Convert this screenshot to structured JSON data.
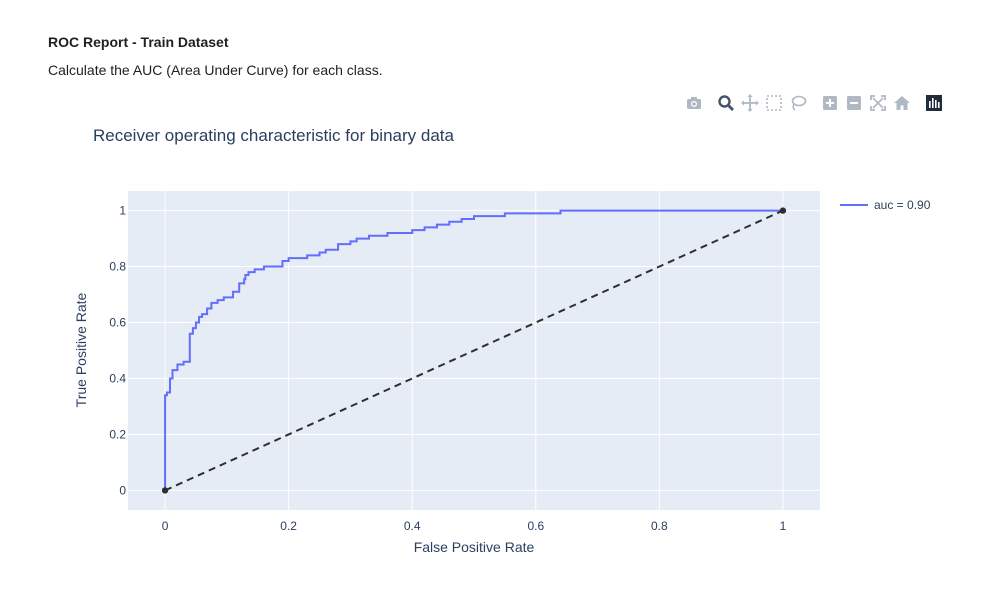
{
  "report": {
    "title": "ROC Report - Train Dataset",
    "description": "Calculate the AUC (Area Under Curve) for each class."
  },
  "modebar": {
    "buttons": [
      {
        "name": "camera-icon"
      },
      {
        "name": "zoom-icon"
      },
      {
        "name": "pan-icon"
      },
      {
        "name": "box-select-icon"
      },
      {
        "name": "lasso-icon"
      },
      {
        "name": "zoom-in-icon"
      },
      {
        "name": "zoom-out-icon"
      },
      {
        "name": "autoscale-icon"
      },
      {
        "name": "home-icon"
      },
      {
        "name": "plotly-logo-icon"
      }
    ]
  },
  "chart_data": {
    "type": "line",
    "title": "Receiver operating characteristic for binary data",
    "xlabel": "False Positive Rate",
    "ylabel": "True Positive Rate",
    "xlim": [
      -0.06,
      1.06
    ],
    "ylim": [
      -0.07,
      1.07
    ],
    "xticks": [
      0,
      0.2,
      0.4,
      0.6,
      0.8,
      1
    ],
    "yticks": [
      0,
      0.2,
      0.4,
      0.6,
      0.8,
      1
    ],
    "xtick_labels": [
      "0",
      "0.2",
      "0.4",
      "0.6",
      "0.8",
      "1"
    ],
    "ytick_labels": [
      "0",
      "0.2",
      "0.4",
      "0.6",
      "0.8",
      "1"
    ],
    "grid": true,
    "legend_position": "top-right",
    "colors": {
      "roc": "#636efa",
      "diagonal": "#2f2f2f",
      "plot_bg": "#e5ecf6",
      "grid": "#ffffff",
      "text": "#2a3f5f"
    },
    "series": [
      {
        "name": "auc = 0.90",
        "style": "step",
        "x": [
          0,
          0,
          0.003,
          0.003,
          0.008,
          0.008,
          0.012,
          0.012,
          0.02,
          0.02,
          0.03,
          0.03,
          0.04,
          0.04,
          0.045,
          0.045,
          0.05,
          0.05,
          0.055,
          0.055,
          0.06,
          0.06,
          0.068,
          0.068,
          0.075,
          0.075,
          0.085,
          0.085,
          0.095,
          0.095,
          0.11,
          0.11,
          0.12,
          0.12,
          0.128,
          0.128,
          0.13,
          0.13,
          0.135,
          0.135,
          0.145,
          0.145,
          0.16,
          0.16,
          0.19,
          0.19,
          0.2,
          0.2,
          0.23,
          0.23,
          0.25,
          0.25,
          0.26,
          0.26,
          0.28,
          0.28,
          0.3,
          0.3,
          0.31,
          0.31,
          0.33,
          0.33,
          0.36,
          0.36,
          0.4,
          0.4,
          0.42,
          0.42,
          0.44,
          0.44,
          0.46,
          0.46,
          0.48,
          0.48,
          0.5,
          0.5,
          0.55,
          0.55,
          0.64,
          0.64,
          0.78,
          0.78,
          1
        ],
        "y": [
          0,
          0.34,
          0.34,
          0.35,
          0.35,
          0.4,
          0.4,
          0.43,
          0.43,
          0.45,
          0.45,
          0.46,
          0.46,
          0.56,
          0.56,
          0.58,
          0.58,
          0.6,
          0.6,
          0.62,
          0.62,
          0.63,
          0.63,
          0.65,
          0.65,
          0.67,
          0.67,
          0.68,
          0.68,
          0.69,
          0.69,
          0.71,
          0.71,
          0.74,
          0.74,
          0.755,
          0.755,
          0.77,
          0.77,
          0.78,
          0.78,
          0.79,
          0.79,
          0.8,
          0.8,
          0.82,
          0.82,
          0.83,
          0.83,
          0.84,
          0.84,
          0.85,
          0.85,
          0.86,
          0.86,
          0.88,
          0.88,
          0.89,
          0.89,
          0.9,
          0.9,
          0.91,
          0.91,
          0.92,
          0.92,
          0.93,
          0.93,
          0.94,
          0.94,
          0.95,
          0.95,
          0.96,
          0.96,
          0.97,
          0.97,
          0.98,
          0.98,
          0.99,
          0.99,
          1,
          1,
          1,
          1
        ]
      },
      {
        "name": "",
        "style": "dashed",
        "x": [
          0,
          1
        ],
        "y": [
          0,
          1
        ],
        "markers": true
      }
    ]
  }
}
